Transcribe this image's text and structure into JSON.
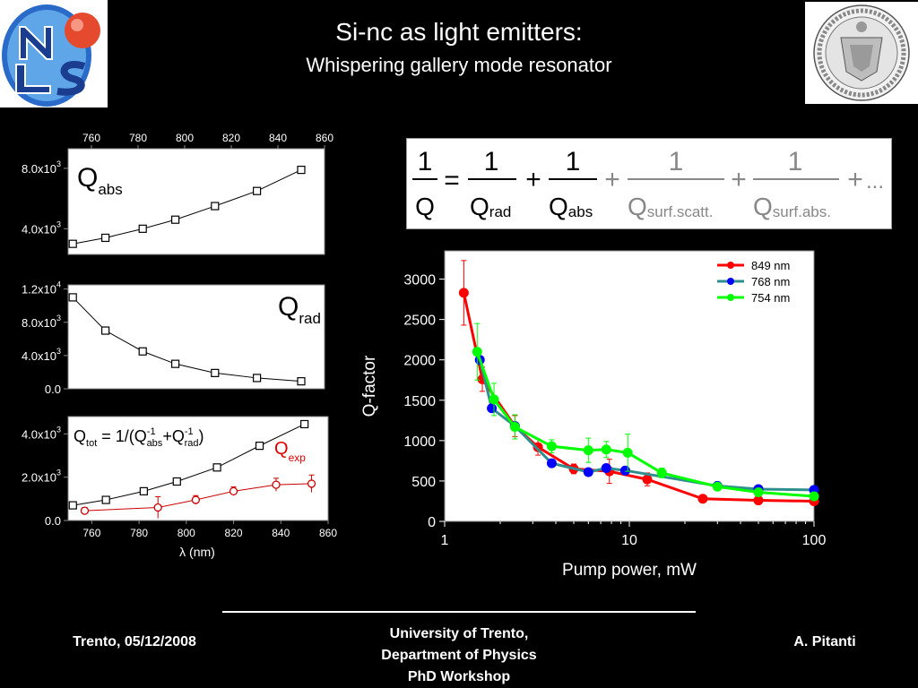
{
  "header": {
    "title": "Si-nc as light emitters:",
    "subtitle": "Whispering gallery mode resonator"
  },
  "logos": {
    "left": "NLS",
    "right_seal_text": "UNIVERSITAS STUDIORUM ATHESINA"
  },
  "equation": {
    "one": "1",
    "Q": "Q",
    "eq": "=",
    "plus": "+",
    "sub_rad": "rad",
    "sub_abs": "abs",
    "sub_surf_scatt": "surf.scatt.",
    "sub_surf_abs": "surf.abs.",
    "ellipsis": "..."
  },
  "colors": {
    "red": "#ff0000",
    "blue": "#0000ff",
    "green": "#00ff00",
    "teal": "#4a9a9a",
    "gray_term": "#9a9a9a"
  },
  "chart_data": [
    {
      "id": "qabs",
      "type": "line",
      "label_main": "Q",
      "label_sub": "abs",
      "x": [
        752,
        766,
        782,
        796,
        813,
        831,
        850
      ],
      "y": [
        3000,
        3400,
        4000,
        4600,
        5500,
        6500,
        7900
      ],
      "xlim": [
        750,
        860
      ],
      "ylim": [
        2300,
        9300
      ],
      "xticks": [
        "760",
        "780",
        "800",
        "820",
        "840",
        "860"
      ],
      "yticks": [
        {
          "v": 4000,
          "base": "4.0x10",
          "exp": "3"
        },
        {
          "v": 8000,
          "base": "8.0x10",
          "exp": "3"
        }
      ]
    },
    {
      "id": "qrad",
      "type": "line",
      "label_main": "Q",
      "label_sub": "rad",
      "x": [
        752,
        766,
        782,
        796,
        813,
        831,
        850
      ],
      "y": [
        11000,
        7000,
        4500,
        3000,
        1900,
        1300,
        900
      ],
      "xlim": [
        750,
        860
      ],
      "ylim": [
        0,
        12500
      ],
      "yticks": [
        {
          "v": 0,
          "base": "0.0",
          "exp": ""
        },
        {
          "v": 4000,
          "base": "4.0x10",
          "exp": "3"
        },
        {
          "v": 8000,
          "base": "8.0x10",
          "exp": "3"
        },
        {
          "v": 12000,
          "base": "1.2x10",
          "exp": "4"
        }
      ]
    },
    {
      "id": "qtot",
      "type": "line",
      "formula": {
        "a": "Q",
        "a_sub": "tot",
        "b": " = 1/(Q",
        "b_sup": "-1",
        "b_sub": "abs",
        "c": "+Q",
        "c_sup": "-1",
        "c_sub": "rad",
        "d": ")"
      },
      "exp_label": {
        "main": "Q",
        "sub": "exp"
      },
      "series": [
        {
          "name": "Qtot",
          "x": [
            752,
            766,
            782,
            796,
            813,
            831,
            850
          ],
          "y": [
            700,
            950,
            1350,
            1800,
            2450,
            3450,
            4450
          ]
        },
        {
          "name": "Qexp",
          "x": [
            757,
            788,
            804,
            820,
            838,
            853
          ],
          "y": [
            450,
            600,
            950,
            1350,
            1650,
            1700
          ],
          "err": [
            150,
            500,
            200,
            200,
            300,
            400
          ]
        }
      ],
      "xlim": [
        750,
        860
      ],
      "ylim": [
        0,
        4800
      ],
      "xticks": [
        "760",
        "780",
        "800",
        "820",
        "840",
        "860"
      ],
      "yticks": [
        {
          "v": 0,
          "base": "0.0",
          "exp": ""
        },
        {
          "v": 2000,
          "base": "2.0x10",
          "exp": "3"
        },
        {
          "v": 4000,
          "base": "4.0x10",
          "exp": "3"
        }
      ],
      "xlabel": "λ (nm)"
    },
    {
      "id": "qfactor",
      "type": "line",
      "xscale": "log",
      "xlim": [
        1,
        100
      ],
      "ylim": [
        0,
        3350
      ],
      "xlabel": "Pump power, mW",
      "ylabel": "Q-factor",
      "xticks": [
        "1",
        "10",
        "100"
      ],
      "yticks": [
        "0",
        "500",
        "1000",
        "1500",
        "2000",
        "2500",
        "3000"
      ],
      "legend_position": "top-right",
      "series": [
        {
          "name": "849 nm",
          "color": "#ff0000",
          "line": "#ff0000",
          "x": [
            1.27,
            1.6,
            2.4,
            3.2,
            5.0,
            7.8,
            12.5,
            25,
            50,
            100
          ],
          "y": [
            2830,
            1760,
            1180,
            920,
            650,
            620,
            520,
            280,
            260,
            250
          ],
          "err": [
            400,
            150,
            130,
            100,
            60,
            150,
            80,
            30,
            30,
            30
          ]
        },
        {
          "name": "768 nm",
          "color": "#0000ff",
          "line": "#2f8f8f",
          "x": [
            1.55,
            1.8,
            2.4,
            3.8,
            6.0,
            7.5,
            9.5,
            30,
            50,
            100
          ],
          "y": [
            2000,
            1400,
            1180,
            720,
            610,
            660,
            630,
            440,
            400,
            390
          ],
          "err": [
            0,
            0,
            0,
            0,
            0,
            0,
            0,
            0,
            0,
            0
          ]
        },
        {
          "name": "754 nm",
          "color": "#00ff00",
          "line": "#00ff00",
          "x": [
            1.5,
            1.85,
            2.4,
            3.8,
            6.0,
            7.5,
            9.8,
            15,
            30,
            50,
            100
          ],
          "y": [
            2100,
            1510,
            1170,
            930,
            880,
            890,
            850,
            600,
            430,
            360,
            310
          ],
          "err": [
            350,
            200,
            150,
            80,
            150,
            100,
            230,
            60,
            40,
            30,
            30
          ]
        }
      ]
    }
  ],
  "footer": {
    "date": "Trento, 05/12/2008",
    "inst1": "University of Trento,",
    "inst2": "Department of Physics",
    "inst3": "PhD Workshop",
    "author": "A. Pitanti"
  }
}
